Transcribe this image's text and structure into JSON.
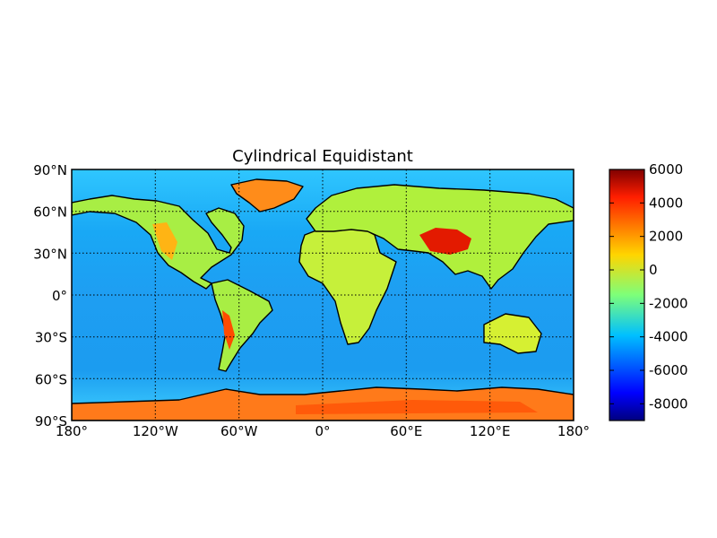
{
  "map": {
    "title": "Cylindrical Equidistant",
    "projection": "cylindrical equidistant",
    "graticule": "dotted",
    "lat_labels": [
      "90°N",
      "60°N",
      "30°N",
      "0°",
      "30°S",
      "60°S",
      "90°S"
    ],
    "lon_labels": [
      "180°",
      "120°W",
      "60°W",
      "0°",
      "60°E",
      "120°E",
      "180°"
    ],
    "coastline_color": "#000000",
    "features": [
      "Greenland",
      "Antarctica",
      "Himalaya / Tibetan Plateau",
      "Andes",
      "Rocky Mountains",
      "Sahara",
      "Australia"
    ]
  },
  "colorbar": {
    "colormap": "jet",
    "range": [
      -9000,
      6000
    ],
    "tick_values": [
      6000,
      4000,
      2000,
      0,
      -2000,
      -4000,
      -6000,
      -8000
    ],
    "tick_labels": [
      "6000",
      "4000",
      "2000",
      "0",
      "-2000",
      "-4000",
      "-6000",
      "-8000"
    ]
  }
}
